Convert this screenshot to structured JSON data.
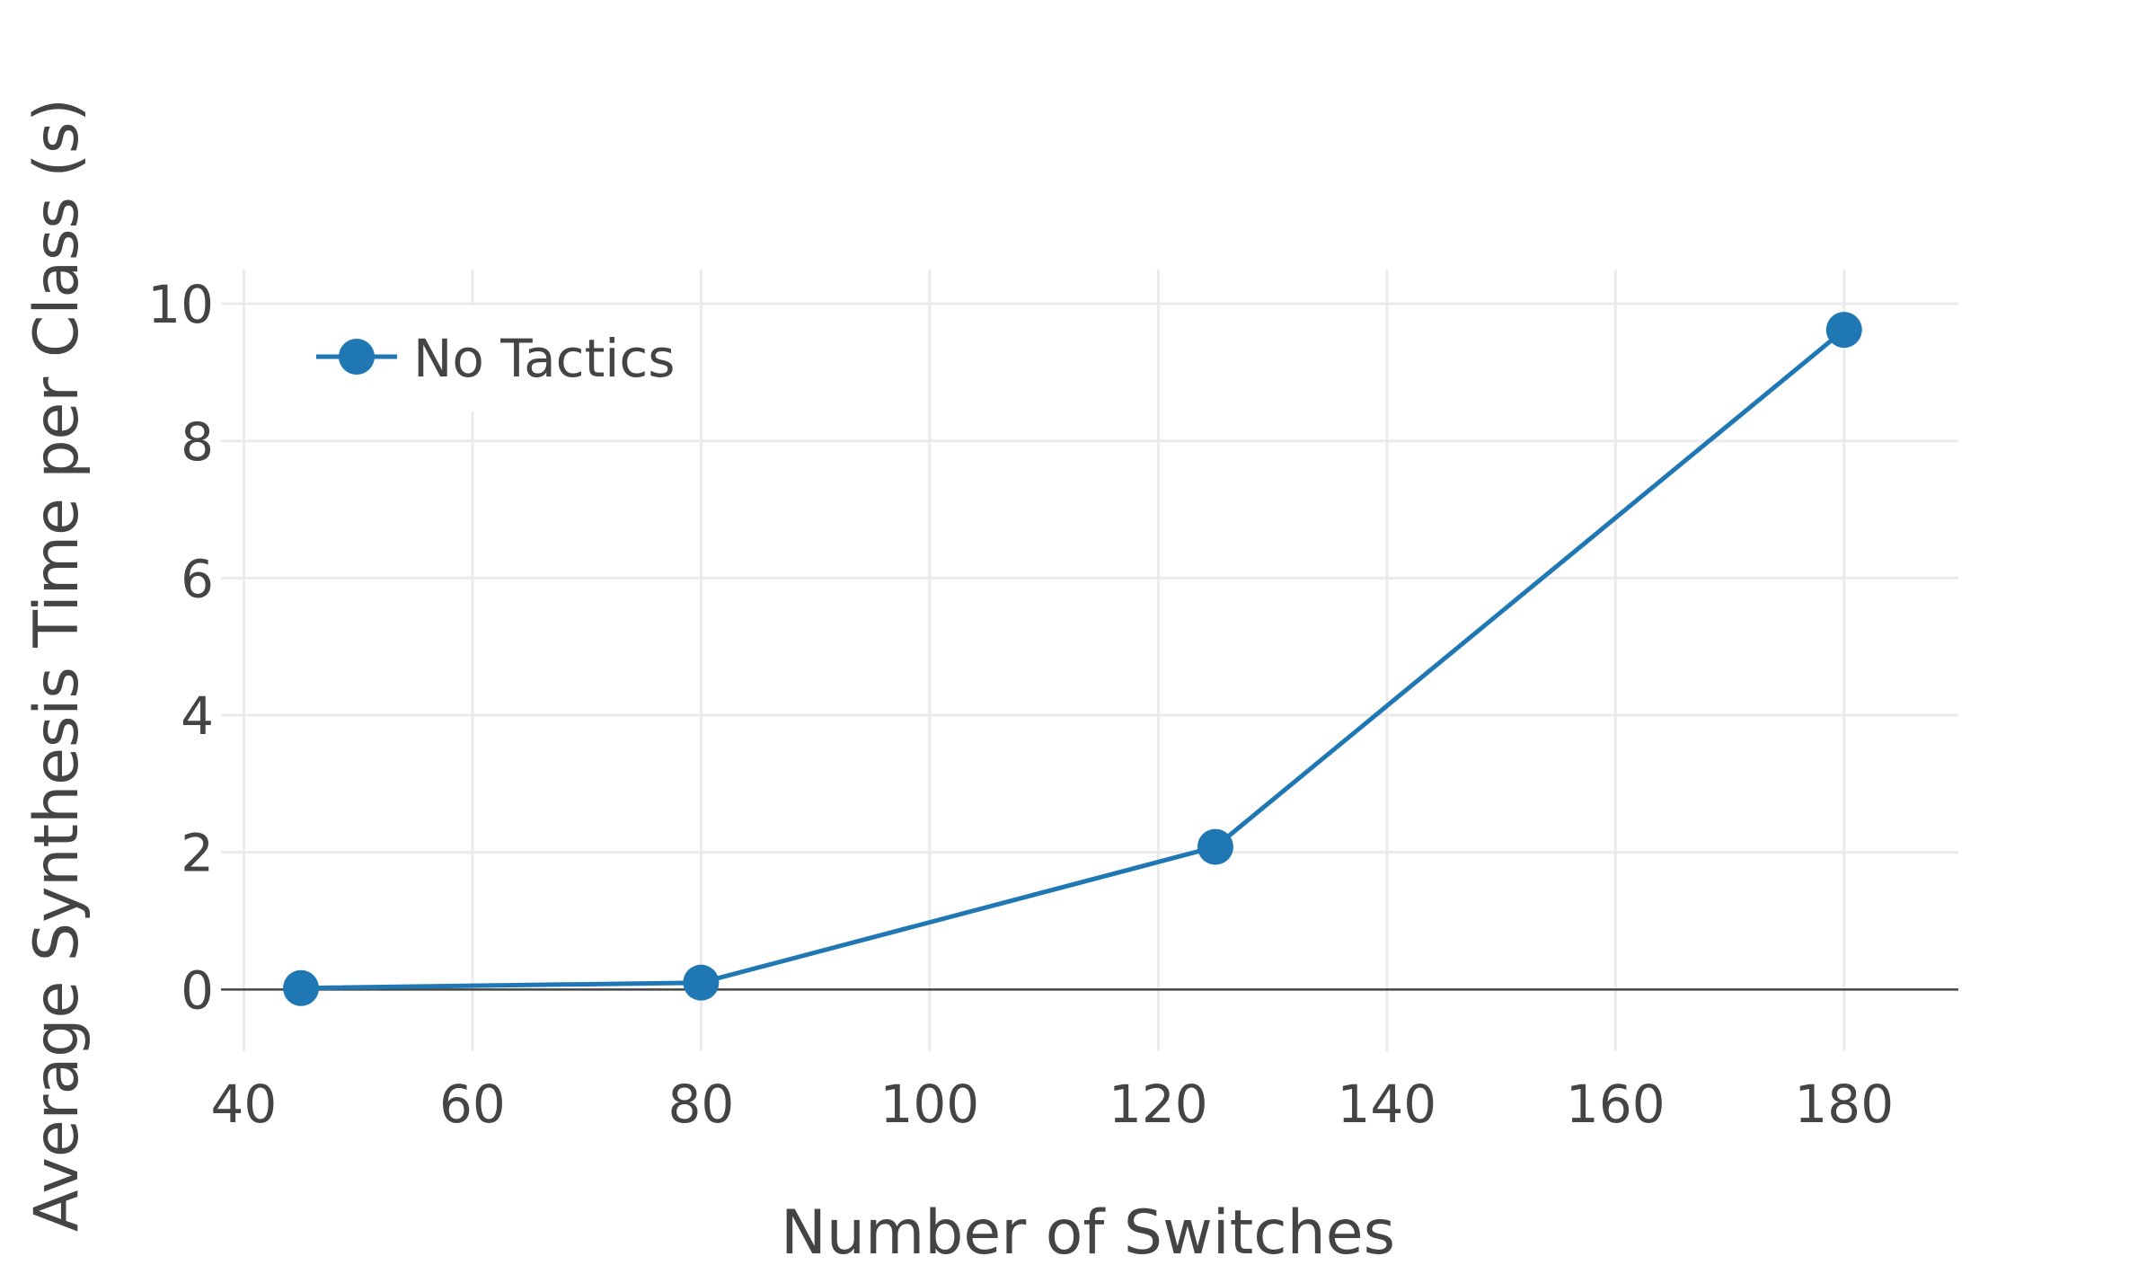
{
  "chart_data": {
    "type": "line",
    "title": "",
    "xlabel": "Number of Switches",
    "ylabel": "Average Synthesis Time per Class (s)",
    "xlim": [
      38,
      190
    ],
    "ylim": [
      -0.9,
      10.5
    ],
    "x_ticks": [
      40,
      60,
      80,
      100,
      120,
      140,
      160,
      180
    ],
    "y_ticks": [
      0,
      2,
      4,
      6,
      8,
      10
    ],
    "grid": true,
    "legend_position": "top-left",
    "series": [
      {
        "name": "No Tactics",
        "color": "#1f77b4",
        "x": [
          45,
          80,
          125,
          180
        ],
        "y": [
          0.02,
          0.1,
          2.08,
          9.62
        ]
      }
    ]
  }
}
